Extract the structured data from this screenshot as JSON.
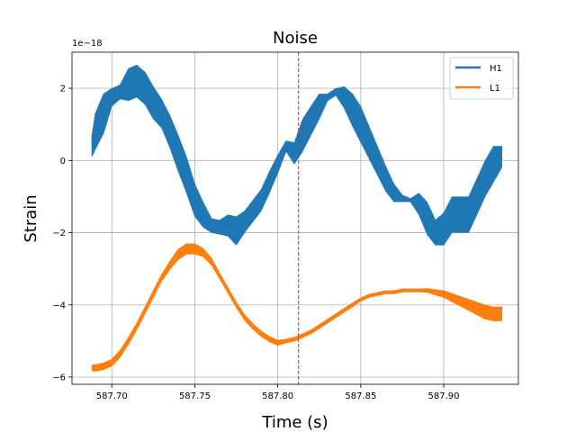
{
  "chart_data": {
    "type": "line",
    "title": "Noise",
    "xlabel": "Time (s)",
    "ylabel": "Strain",
    "y_offset_label": "1e−18",
    "xlim": [
      587.676,
      587.945
    ],
    "ylim": [
      -6.2,
      3.0
    ],
    "xticks": [
      587.7,
      587.75,
      587.8,
      587.85,
      587.9
    ],
    "xtick_labels": [
      "587.70",
      "587.75",
      "587.80",
      "587.85",
      "587.90"
    ],
    "yticks": [
      -6,
      -4,
      -2,
      0,
      2
    ],
    "ytick_labels": [
      "−6",
      "−4",
      "−2",
      "0",
      "2"
    ],
    "grid": true,
    "legend_position": "top-right",
    "marker_line": {
      "x": 587.8125,
      "color": "#d62728",
      "style": "dashed"
    },
    "series": [
      {
        "name": "H1",
        "color": "#1f77b4",
        "x": [
          587.688,
          587.69,
          587.695,
          587.7,
          587.705,
          587.71,
          587.715,
          587.72,
          587.725,
          587.73,
          587.735,
          587.74,
          587.745,
          587.75,
          587.755,
          587.76,
          587.765,
          587.77,
          587.775,
          587.78,
          587.785,
          587.79,
          587.795,
          587.8,
          587.805,
          587.81,
          587.815,
          587.82,
          587.825,
          587.83,
          587.835,
          587.84,
          587.845,
          587.85,
          587.855,
          587.86,
          587.865,
          587.87,
          587.875,
          587.88,
          587.885,
          587.89,
          587.895,
          587.9,
          587.905,
          587.91,
          587.915,
          587.92,
          587.925,
          587.93,
          587.935
        ],
        "center": [
          0.4,
          0.8,
          1.3,
          1.75,
          1.9,
          2.1,
          2.2,
          2.0,
          1.6,
          1.3,
          0.8,
          0.2,
          -0.4,
          -1.1,
          -1.5,
          -1.8,
          -1.85,
          -1.8,
          -1.95,
          -1.7,
          -1.4,
          -1.1,
          -0.6,
          -0.1,
          0.4,
          0.2,
          0.7,
          1.1,
          1.5,
          1.75,
          1.9,
          1.75,
          1.4,
          1.0,
          0.5,
          0.0,
          -0.5,
          -0.9,
          -1.05,
          -1.1,
          -1.2,
          -1.6,
          -2.0,
          -1.9,
          -1.5,
          -1.5,
          -1.5,
          -1.0,
          -0.5,
          -0.1,
          0.1
        ],
        "amplitude": [
          0.3,
          0.5,
          0.55,
          0.25,
          0.2,
          0.45,
          0.45,
          0.45,
          0.45,
          0.4,
          0.45,
          0.5,
          0.5,
          0.45,
          0.35,
          0.2,
          0.2,
          0.3,
          0.4,
          0.3,
          0.3,
          0.3,
          0.3,
          0.25,
          0.15,
          0.3,
          0.45,
          0.4,
          0.35,
          0.1,
          0.1,
          0.3,
          0.45,
          0.5,
          0.45,
          0.4,
          0.35,
          0.25,
          0.1,
          0.05,
          0.3,
          0.45,
          0.35,
          0.45,
          0.5,
          0.5,
          0.5,
          0.5,
          0.5,
          0.5,
          0.3
        ]
      },
      {
        "name": "L1",
        "color": "#ff7f0e",
        "x": [
          587.688,
          587.69,
          587.695,
          587.7,
          587.705,
          587.71,
          587.715,
          587.72,
          587.725,
          587.73,
          587.735,
          587.74,
          587.745,
          587.75,
          587.755,
          587.76,
          587.765,
          587.77,
          587.775,
          587.78,
          587.785,
          587.79,
          587.795,
          587.8,
          587.805,
          587.81,
          587.815,
          587.82,
          587.825,
          587.83,
          587.835,
          587.84,
          587.845,
          587.85,
          587.855,
          587.86,
          587.865,
          587.87,
          587.875,
          587.88,
          587.885,
          587.89,
          587.895,
          587.9,
          587.905,
          587.91,
          587.915,
          587.92,
          587.925,
          587.93,
          587.935
        ],
        "center": [
          -5.75,
          -5.75,
          -5.7,
          -5.6,
          -5.35,
          -5.0,
          -4.6,
          -4.15,
          -3.7,
          -3.25,
          -2.9,
          -2.6,
          -2.45,
          -2.45,
          -2.55,
          -2.8,
          -3.2,
          -3.6,
          -4.0,
          -4.35,
          -4.6,
          -4.8,
          -4.95,
          -5.05,
          -5.0,
          -4.95,
          -4.85,
          -4.75,
          -4.6,
          -4.45,
          -4.3,
          -4.15,
          -4.0,
          -3.85,
          -3.75,
          -3.7,
          -3.65,
          -3.65,
          -3.6,
          -3.6,
          -3.6,
          -3.6,
          -3.65,
          -3.7,
          -3.8,
          -3.9,
          -4.0,
          -4.1,
          -4.2,
          -4.25,
          -4.25
        ],
        "amplitude": [
          0.08,
          0.1,
          0.1,
          0.1,
          0.1,
          0.1,
          0.1,
          0.1,
          0.1,
          0.1,
          0.12,
          0.15,
          0.15,
          0.15,
          0.12,
          0.1,
          0.08,
          0.08,
          0.08,
          0.08,
          0.08,
          0.08,
          0.08,
          0.08,
          0.06,
          0.06,
          0.06,
          0.06,
          0.06,
          0.06,
          0.06,
          0.06,
          0.06,
          0.05,
          0.05,
          0.05,
          0.05,
          0.05,
          0.05,
          0.05,
          0.05,
          0.06,
          0.08,
          0.1,
          0.12,
          0.14,
          0.16,
          0.18,
          0.2,
          0.2,
          0.2
        ]
      }
    ]
  }
}
